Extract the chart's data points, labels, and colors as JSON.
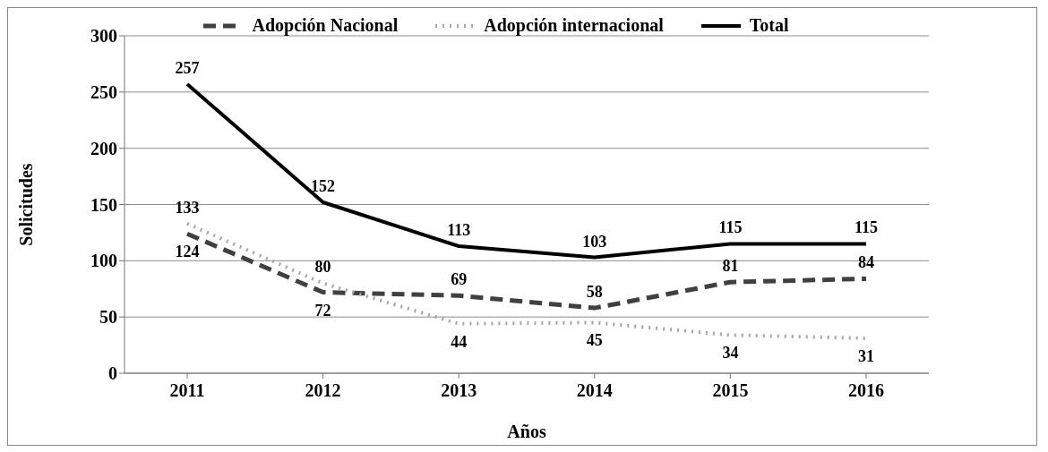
{
  "chart_data": {
    "type": "line",
    "xlabel": "Años",
    "ylabel": "Solicitudes",
    "categories": [
      "2011",
      "2012",
      "2013",
      "2014",
      "2015",
      "2016"
    ],
    "series": [
      {
        "name": "Adopción Nacional",
        "color": "#404040",
        "line_style": "dashed",
        "values": [
          124,
          72,
          69,
          58,
          81,
          84
        ]
      },
      {
        "name": "Adopción internacional",
        "color": "#a6a6a6",
        "line_style": "dotted",
        "values": [
          133,
          80,
          44,
          45,
          34,
          31
        ]
      },
      {
        "name": "Total",
        "color": "#000000",
        "line_style": "solid",
        "values": [
          257,
          152,
          113,
          103,
          115,
          115
        ]
      }
    ],
    "ylim": [
      0,
      300
    ],
    "yticks": [
      0,
      50,
      100,
      150,
      200,
      250,
      300
    ],
    "grid": "y",
    "legend": "top",
    "marker": "none",
    "data_labels": true
  }
}
